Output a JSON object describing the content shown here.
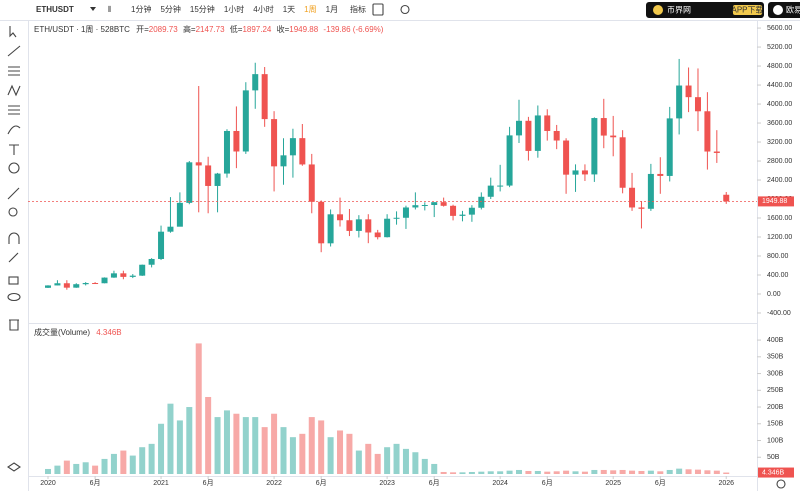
{
  "toolbar": {
    "symbol": "ETHUSDT",
    "intervals": [
      "1分钟",
      "5分钟",
      "15分钟",
      "1小时",
      "4小时",
      "1天",
      "1周",
      "1月"
    ],
    "active_interval": 6,
    "indicators": "指标",
    "brand": "币界网",
    "app_download": "APP下载",
    "right_brand": "欧易"
  },
  "chart_data": {
    "type": "candlestick",
    "header": {
      "title": "ETH/USDT · 1周 · 528BTC",
      "open_label": "开=",
      "high_label": "高=",
      "low_label": "低=",
      "close_label": "收=",
      "change_label": "-139.86 (-6.69%)"
    },
    "volume_title": "成交量(Volume)",
    "up_color": "#26a69a",
    "down_color": "#ef5350",
    "open": [
      130,
      180,
      226,
      133,
      206,
      231,
      226,
      345,
      435,
      360,
      386,
      616,
      737,
      1312,
      1417,
      1919,
      2773,
      2707,
      2275,
      2536,
      3433,
      3001,
      4288,
      4630,
      3683,
      2688,
      2920,
      3282,
      2728,
      1942,
      1067,
      1678,
      1553,
      1328,
      1572,
      1295,
      1196,
      1585,
      1605,
      1822,
      1870,
      1874,
      1934,
      1857,
      1645,
      1671,
      1816,
      2047,
      2282,
      2283,
      3340,
      3647,
      3013,
      3760,
      3433,
      3232,
      2513,
      2602,
      2518,
      3705,
      3336,
      3300,
      2237,
      1822,
      1794,
      2528,
      2486,
      3698,
      4390,
      4145,
      3848,
      3000,
      2089.73
    ],
    "high": [
      185,
      290,
      290,
      227,
      250,
      250,
      350,
      490,
      490,
      420,
      620,
      755,
      1440,
      2040,
      2140,
      2800,
      4380,
      2890,
      2550,
      3470,
      3950,
      4460,
      4870,
      4780,
      3850,
      3280,
      3480,
      3580,
      2950,
      1970,
      1780,
      2030,
      1790,
      1660,
      1680,
      1350,
      1680,
      1740,
      1860,
      2140,
      1930,
      1930,
      2030,
      1880,
      1750,
      1870,
      2140,
      2450,
      2720,
      3520,
      4090,
      3730,
      3970,
      3890,
      3560,
      3280,
      2730,
      2730,
      3720,
      4110,
      3750,
      3450,
      2550,
      1950,
      2740,
      2880,
      3940,
      4950,
      4770,
      4750,
      4250,
      3450,
      2147.73
    ],
    "low": [
      127,
      180,
      90,
      130,
      180,
      215,
      225,
      340,
      310,
      335,
      380,
      560,
      715,
      1290,
      1440,
      1890,
      1720,
      1700,
      1720,
      2450,
      2650,
      2950,
      3900,
      3520,
      2160,
      2300,
      2450,
      2700,
      1700,
      880,
      1000,
      1420,
      1220,
      1190,
      1070,
      1150,
      1190,
      1460,
      1370,
      1780,
      1760,
      1620,
      1840,
      1550,
      1530,
      1520,
      1780,
      2000,
      2160,
      2250,
      3180,
      2810,
      2870,
      3230,
      3050,
      2110,
      2150,
      2380,
      2360,
      3070,
      2900,
      2120,
      1750,
      1380,
      1750,
      2110,
      2370,
      3360,
      3830,
      3430,
      2620,
      2760,
      1897.24
    ],
    "close": [
      180,
      226,
      133,
      206,
      231,
      226,
      345,
      435,
      360,
      386,
      616,
      737,
      1312,
      1417,
      1919,
      2773,
      2707,
      2275,
      2536,
      3433,
      3001,
      4288,
      4630,
      3683,
      2688,
      2920,
      3282,
      2728,
      1942,
      1067,
      1678,
      1553,
      1328,
      1572,
      1295,
      1196,
      1585,
      1605,
      1822,
      1870,
      1874,
      1934,
      1857,
      1645,
      1671,
      1816,
      2047,
      2282,
      2283,
      3340,
      3647,
      3013,
      3760,
      3433,
      3232,
      2513,
      2602,
      2518,
      3705,
      3336,
      3300,
      2237,
      1822,
      1794,
      2528,
      2486,
      3698,
      4390,
      4145,
      3848,
      3000,
      2970,
      1949.88
    ],
    "volume": [
      15,
      25,
      40,
      30,
      35,
      25,
      45,
      60,
      70,
      55,
      80,
      90,
      150,
      210,
      160,
      200,
      390,
      230,
      170,
      190,
      180,
      170,
      170,
      140,
      180,
      140,
      110,
      120,
      170,
      160,
      110,
      130,
      120,
      70,
      90,
      60,
      80,
      90,
      75,
      65,
      45,
      30,
      6,
      5,
      5,
      6,
      7,
      8,
      8,
      10,
      12,
      9,
      9,
      7,
      8,
      10,
      8,
      7,
      12,
      12,
      11,
      12,
      10,
      9,
      10,
      8,
      12,
      16,
      14,
      13,
      11,
      10,
      4.346
    ],
    "volume_last_label": "4.346B",
    "price_last_label": "1949.88",
    "ylim": [
      -590,
      5770
    ],
    "yticks": [
      {
        "value": -400,
        "label": "-400.00"
      },
      {
        "value": 0,
        "label": "0.00"
      },
      {
        "value": 400,
        "label": "400.00"
      },
      {
        "value": 800,
        "label": "800.00"
      },
      {
        "value": 1200,
        "label": "1200.00"
      },
      {
        "value": 1600,
        "label": "1600.00"
      },
      {
        "value": 2000,
        "label": "2000.00"
      },
      {
        "value": 2400,
        "label": "2400.00"
      },
      {
        "value": 2800,
        "label": "2800.00"
      },
      {
        "value": 3200,
        "label": "3200.00"
      },
      {
        "value": 3600,
        "label": "3600.00"
      },
      {
        "value": 4000,
        "label": "4000.00"
      },
      {
        "value": 4400,
        "label": "4400.00"
      },
      {
        "value": 4800,
        "label": "4800.00"
      },
      {
        "value": 5200,
        "label": "5200.00"
      },
      {
        "value": 5600,
        "label": "5600.00"
      }
    ],
    "vlim": [
      0,
      445
    ],
    "vticks": [
      {
        "value": 50,
        "label": "50B"
      },
      {
        "value": 100,
        "label": "100B"
      },
      {
        "value": 150,
        "label": "150B"
      },
      {
        "value": 200,
        "label": "200B"
      },
      {
        "value": 250,
        "label": "250B"
      },
      {
        "value": 300,
        "label": "300B"
      },
      {
        "value": 350,
        "label": "350B"
      },
      {
        "value": 400,
        "label": "400B"
      }
    ],
    "xticks": [
      {
        "value": 0,
        "label": "2020"
      },
      {
        "value": 5,
        "label": "6月"
      },
      {
        "value": 12,
        "label": "2021"
      },
      {
        "value": 17,
        "label": "6月"
      },
      {
        "value": 24,
        "label": "2022"
      },
      {
        "value": 29,
        "label": "6月"
      },
      {
        "value": 36,
        "label": "2023"
      },
      {
        "value": 41,
        "label": "6月"
      },
      {
        "value": 48,
        "label": "2024"
      },
      {
        "value": 53,
        "label": "6月"
      },
      {
        "value": 60,
        "label": "2025"
      },
      {
        "value": 65,
        "label": "6月"
      },
      {
        "value": 72,
        "label": "2026"
      }
    ]
  }
}
